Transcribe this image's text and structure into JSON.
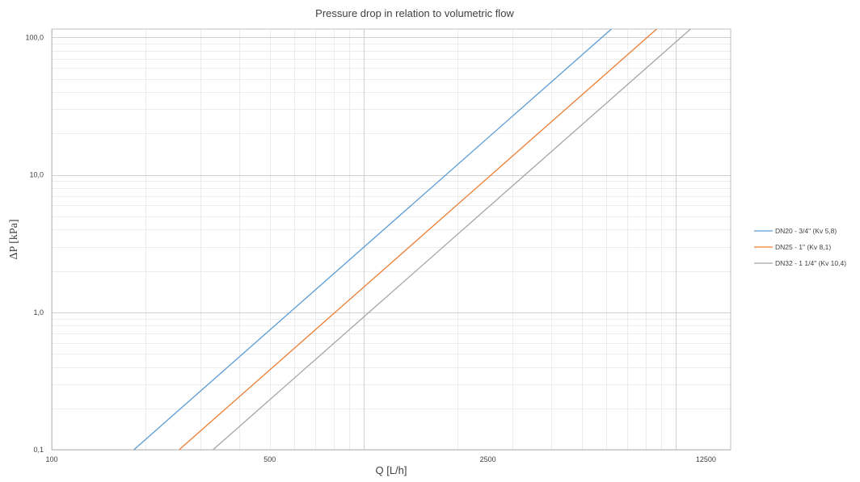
{
  "chart_data": {
    "type": "line",
    "title": "Pressure drop in relation to volumetric flow",
    "xlabel": "Q [L/h]",
    "ylabel": "ΔP [kPa]",
    "x_scale": "log",
    "y_scale": "log",
    "xlim": [
      100,
      15000
    ],
    "ylim": [
      0.1,
      115
    ],
    "x_ticks": [
      100,
      500,
      2500,
      12500
    ],
    "x_tick_labels": [
      "100",
      "500",
      "2500",
      "12500"
    ],
    "y_ticks": [
      0.1,
      1,
      10,
      100
    ],
    "y_tick_labels": [
      "0,1",
      "1,0",
      "10,0",
      "100,0"
    ],
    "grid": true,
    "legend_position": "right",
    "series": [
      {
        "name": "DN20 - 3/4\" (Kv 5,8)",
        "color": "#5b9bd5",
        "x": [
          183.4,
          6220
        ],
        "y": [
          0.1,
          115
        ]
      },
      {
        "name": "DN25 - 1\" (Kv 8,1)",
        "color": "#ed7d31",
        "x": [
          256.1,
          8686
        ],
        "y": [
          0.1,
          115
        ]
      },
      {
        "name": "DN32 - 1 1/4\" (Kv 10,4)",
        "color": "#a5a5a5",
        "x": [
          328.9,
          11153
        ],
        "y": [
          0.1,
          115
        ]
      }
    ]
  }
}
